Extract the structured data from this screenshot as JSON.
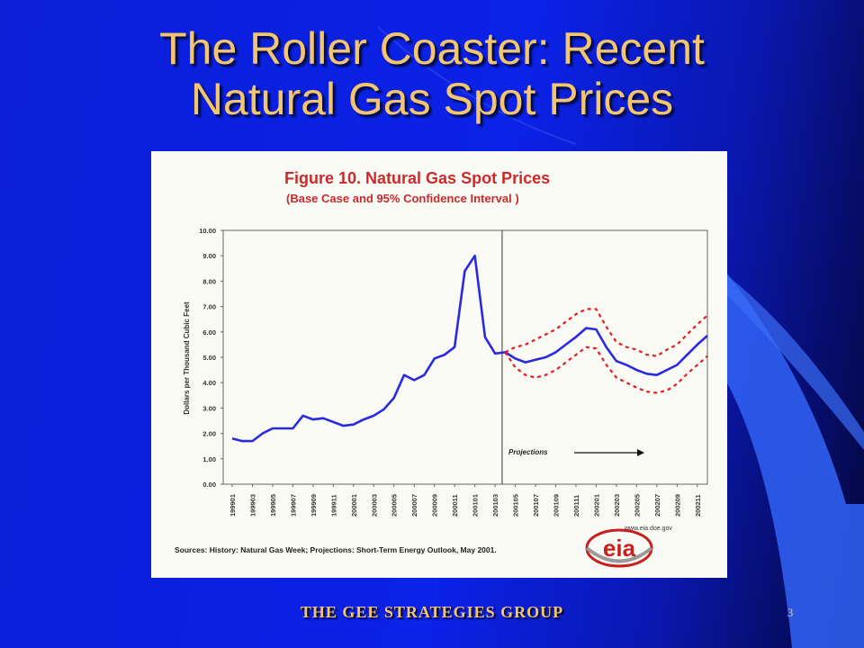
{
  "slide": {
    "title_line1": "The Roller Coaster: Recent",
    "title_line2": "Natural Gas Spot Prices",
    "footer": "THE GEE STRATEGIES   GROUP",
    "page_number": "3",
    "colors": {
      "title": "#f4c56f",
      "background": "#0b22e8"
    }
  },
  "chart_data": {
    "type": "line",
    "title": "Figure 10. Natural Gas Spot Prices",
    "subtitle": "(Base Case and 95% Confidence Interval )",
    "xlabel": "",
    "ylabel": "Dollars per Thousand Cubic Feet",
    "ylim": [
      0,
      10
    ],
    "yticks": [
      "0.00",
      "1.00",
      "2.00",
      "3.00",
      "4.00",
      "5.00",
      "6.00",
      "7.00",
      "8.00",
      "9.00",
      "10.00"
    ],
    "x_tick_labels": [
      "199901",
      "199903",
      "199905",
      "199907",
      "199909",
      "199911",
      "200001",
      "200003",
      "200005",
      "200007",
      "200009",
      "200011",
      "200101",
      "200103",
      "200105",
      "200107",
      "200109",
      "200111",
      "200201",
      "200203",
      "200205",
      "200207",
      "200209",
      "200211"
    ],
    "months": [
      "199901",
      "199902",
      "199903",
      "199904",
      "199905",
      "199906",
      "199907",
      "199908",
      "199909",
      "199910",
      "199911",
      "199912",
      "200001",
      "200002",
      "200003",
      "200004",
      "200005",
      "200006",
      "200007",
      "200008",
      "200009",
      "200010",
      "200011",
      "200012",
      "200101",
      "200102",
      "200103",
      "200104",
      "200105",
      "200106",
      "200107",
      "200108",
      "200109",
      "200110",
      "200111",
      "200112",
      "200201",
      "200202",
      "200203",
      "200204",
      "200205",
      "200206",
      "200207",
      "200208",
      "200209",
      "200210",
      "200211",
      "200212"
    ],
    "projection_start": "200104",
    "annotation": "Projections",
    "grid": false,
    "legend": "none",
    "colors": {
      "base": "#2a2ae0",
      "confidence": "#e02020",
      "frame": "#555555"
    },
    "series": [
      {
        "values": [
          1.8,
          1.7,
          1.7,
          2.0,
          2.2,
          2.2,
          2.2,
          2.7,
          2.55,
          2.6,
          2.45,
          2.3,
          2.35,
          2.55,
          2.7,
          2.95,
          3.4,
          4.3,
          4.1,
          4.3,
          4.95,
          5.1,
          5.4,
          8.4,
          9.0,
          5.8,
          5.15,
          5.2,
          4.95,
          4.8,
          4.9,
          5.0,
          5.2,
          5.5,
          5.8,
          6.15,
          6.1,
          5.4,
          4.85,
          4.7,
          4.5,
          4.35,
          4.3,
          4.5,
          4.7,
          5.1,
          5.5,
          5.85
        ]
      },
      {
        "values": [
          null,
          null,
          null,
          null,
          null,
          null,
          null,
          null,
          null,
          null,
          null,
          null,
          null,
          null,
          null,
          null,
          null,
          null,
          null,
          null,
          null,
          null,
          null,
          null,
          null,
          null,
          null,
          5.2,
          5.4,
          5.5,
          5.7,
          5.9,
          6.1,
          6.4,
          6.7,
          6.9,
          6.9,
          6.2,
          5.6,
          5.4,
          5.3,
          5.1,
          5.05,
          5.3,
          5.5,
          5.9,
          6.3,
          6.65
        ]
      },
      {
        "values": [
          null,
          null,
          null,
          null,
          null,
          null,
          null,
          null,
          null,
          null,
          null,
          null,
          null,
          null,
          null,
          null,
          null,
          null,
          null,
          null,
          null,
          null,
          null,
          null,
          null,
          null,
          null,
          5.2,
          4.6,
          4.3,
          4.2,
          4.3,
          4.5,
          4.8,
          5.1,
          5.4,
          5.35,
          4.7,
          4.2,
          4.0,
          3.8,
          3.65,
          3.6,
          3.7,
          3.95,
          4.35,
          4.7,
          5.05
        ]
      }
    ]
  },
  "chart_meta": {
    "source": "Sources: History: Natural Gas Week;  Projections: Short-Term  Energy Outlook, May 2001.",
    "logo_text": "eia",
    "logo_url": "www.eia.doe.gov"
  }
}
